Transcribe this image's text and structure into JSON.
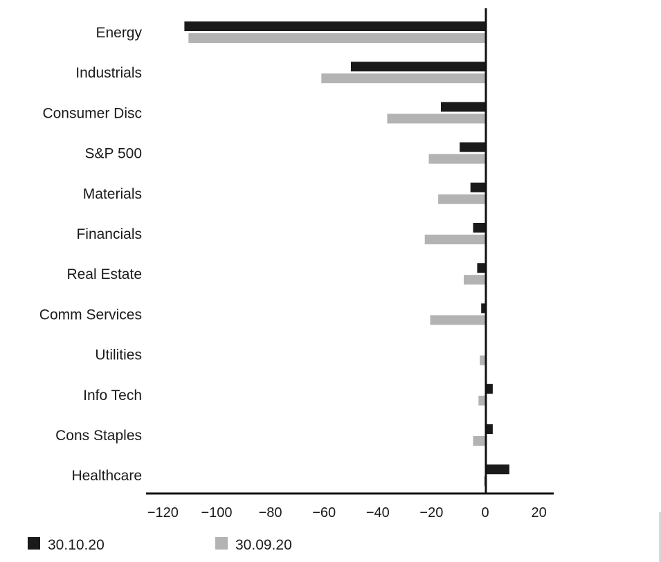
{
  "chart_data": {
    "type": "bar",
    "orientation": "horizontal",
    "categories": [
      "Energy",
      "Industrials",
      "Consumer Disc",
      "S&P 500",
      "Materials",
      "Financials",
      "Real Estate",
      "Comm Services",
      "Utilities",
      "Info Tech",
      "Cons Staples",
      "Healthcare"
    ],
    "series": [
      {
        "name": "30.10.20",
        "color": "#1a1a1a",
        "values": [
          -112,
          -50,
          -16.5,
          -9.5,
          -5.5,
          -4.5,
          -3,
          -1.5,
          0,
          2.8,
          2.8,
          9
        ]
      },
      {
        "name": "30.09.20",
        "color": "#b3b3b3",
        "values": [
          -110.5,
          -61,
          -36.5,
          -21,
          -17.5,
          -22.5,
          -8,
          -20.5,
          -2,
          -2.5,
          -4.5,
          -0.5
        ]
      }
    ],
    "xticks": [
      "−120",
      "−100",
      "−80",
      "−60",
      "−40",
      "−20",
      "0",
      "20"
    ],
    "xtick_values": [
      -120,
      -100,
      -80,
      -60,
      -40,
      -20,
      0,
      20
    ],
    "xlim": [
      -126,
      25
    ],
    "title": "",
    "xlabel": "",
    "ylabel": "",
    "grid": false,
    "legend_position": "bottom-left"
  }
}
